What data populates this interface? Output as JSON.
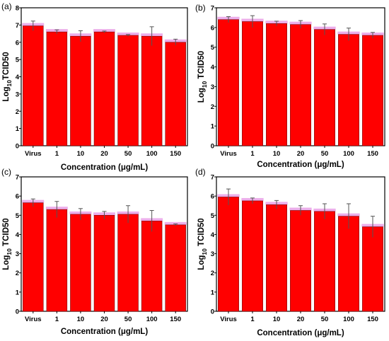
{
  "figure": {
    "colors": {
      "bar": "#ff0000",
      "bar_edge": "#7a0000",
      "shade": "#e9a0e6",
      "error": "#555555",
      "axis": "#000000"
    }
  },
  "chart_data": [
    {
      "panel": "(a)",
      "type": "bar",
      "categories": [
        "Virus",
        "1",
        "10",
        "20",
        "50",
        "100",
        "150"
      ],
      "values": [
        6.95,
        6.6,
        6.35,
        6.6,
        6.4,
        6.35,
        6.0
      ],
      "errors": [
        0.28,
        0.12,
        0.32,
        0.05,
        0.05,
        0.55,
        0.18
      ],
      "xlabel": "Concentration (μg/mL)",
      "ylabel_parts": [
        "Log",
        "10",
        "TCID50"
      ],
      "ylim": [
        0,
        8
      ],
      "yticks": [
        "0",
        "1",
        "2",
        "3",
        "4",
        "5",
        "6",
        "7",
        "8"
      ]
    },
    {
      "panel": "(b)",
      "type": "bar",
      "categories": [
        "Virus",
        "1",
        "10",
        "20",
        "50",
        "100",
        "150"
      ],
      "values": [
        6.4,
        6.3,
        6.2,
        6.15,
        5.9,
        5.65,
        5.6
      ],
      "errors": [
        0.15,
        0.3,
        0.12,
        0.2,
        0.28,
        0.32,
        0.15
      ],
      "xlabel": "Concentration (μg/mL)",
      "ylabel_parts": [
        "Log",
        "10",
        " TCID50"
      ],
      "ylim": [
        0,
        7
      ],
      "yticks": [
        "0",
        "1",
        "2",
        "3",
        "4",
        "5",
        "6",
        "7"
      ]
    },
    {
      "panel": "(c)",
      "type": "bar",
      "categories": [
        "Virus",
        "1",
        "10",
        "20",
        "50",
        "100",
        "150"
      ],
      "values": [
        5.65,
        5.3,
        5.05,
        5.0,
        5.05,
        4.7,
        4.5
      ],
      "errors": [
        0.2,
        0.42,
        0.3,
        0.2,
        0.45,
        0.55,
        0.05
      ],
      "xlabel": "Concentration (μg/mL)",
      "ylabel_parts": [
        "Log",
        "10",
        " TCID50"
      ],
      "ylim": [
        0,
        7
      ],
      "yticks": [
        "0",
        "1",
        "2",
        "3",
        "4",
        "5",
        "6",
        "7"
      ]
    },
    {
      "panel": "(d)",
      "type": "bar",
      "categories": [
        "Virus",
        "1",
        "10",
        "20",
        "50",
        "100",
        "150"
      ],
      "values": [
        5.95,
        5.75,
        5.55,
        5.25,
        5.2,
        4.95,
        4.4
      ],
      "errors": [
        0.42,
        0.15,
        0.22,
        0.25,
        0.4,
        0.65,
        0.55
      ],
      "xlabel": "Concentration (μg/mL)",
      "ylabel_parts": [
        "Log",
        "10",
        " TCID50"
      ],
      "ylim": [
        0,
        7
      ],
      "yticks": [
        "0",
        "1",
        "2",
        "3",
        "4",
        "5",
        "6",
        "7"
      ]
    }
  ]
}
